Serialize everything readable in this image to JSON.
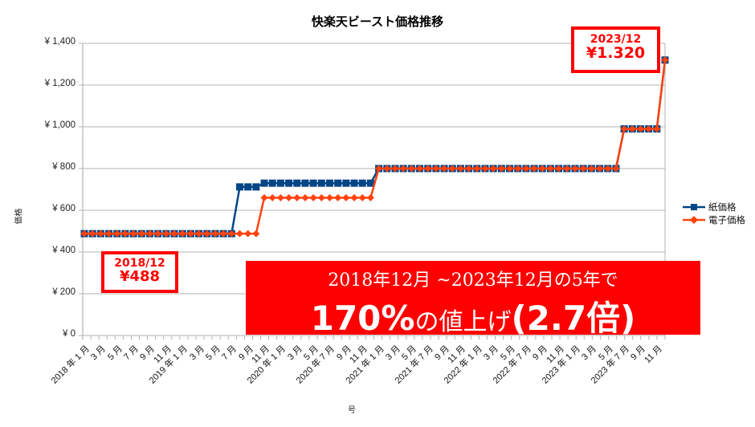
{
  "chart_data": {
    "type": "line",
    "title": "快楽天ビースト価格推移",
    "xlabel": "号",
    "ylabel": "価格",
    "ylim": [
      0,
      1400
    ],
    "yticks": [
      "¥ 0",
      "¥ 200",
      "¥ 400",
      "¥ 600",
      "¥ 800",
      "¥ 1,000",
      "¥ 1,200",
      "¥ 1,400"
    ],
    "ytick_values": [
      0,
      200,
      400,
      600,
      800,
      1000,
      1200,
      1400
    ],
    "grid": true,
    "legend_position": "right",
    "x": [
      "2018/1",
      "2018/2",
      "2018/3",
      "2018/4",
      "2018/5",
      "2018/6",
      "2018/7",
      "2018/8",
      "2018/9",
      "2018/10",
      "2018/11",
      "2018/12",
      "2019/1",
      "2019/2",
      "2019/3",
      "2019/4",
      "2019/5",
      "2019/6",
      "2019/7",
      "2019/8",
      "2019/9",
      "2019/10",
      "2019/11",
      "2019/12",
      "2020/1",
      "2020/2",
      "2020/3",
      "2020/4",
      "2020/5",
      "2020/6",
      "2020/7",
      "2020/8",
      "2020/9",
      "2020/10",
      "2020/11",
      "2020/12",
      "2021/1",
      "2021/2",
      "2021/3",
      "2021/4",
      "2021/5",
      "2021/6",
      "2021/7",
      "2021/8",
      "2021/9",
      "2021/10",
      "2021/11",
      "2021/12",
      "2022/1",
      "2022/2",
      "2022/3",
      "2022/4",
      "2022/5",
      "2022/6",
      "2022/7",
      "2022/8",
      "2022/9",
      "2022/10",
      "2022/11",
      "2022/12",
      "2023/1",
      "2023/2",
      "2023/3",
      "2023/4",
      "2023/5",
      "2023/6",
      "2023/7",
      "2023/8",
      "2023/9",
      "2023/10",
      "2023/11",
      "2023/12"
    ],
    "xtick_labels": [
      "2018 年 1 月",
      "3 月",
      "5 月",
      "7 月",
      "9 月",
      "11 月",
      "2019 年 1 月",
      "3 月",
      "5 月",
      "7 月",
      "9 月",
      "11 月",
      "2020 年 1 月",
      "3 月",
      "5 月",
      "2020 年 7 月",
      "9 月",
      "11 月",
      "2021 年 1 月",
      "3 月",
      "5 月",
      "2021 年 7 月",
      "9 月",
      "11 月",
      "2022 年 1 月",
      "3 月",
      "5 月",
      "2022 年 7 月",
      "9 月",
      "11 月",
      "2023 年 1 月",
      "3 月",
      "5 月",
      "2023 年 7 月",
      "9 月",
      "11 月"
    ],
    "series": [
      {
        "name": "紙価格",
        "color": "#004586",
        "marker": "square",
        "values": [
          488,
          488,
          488,
          488,
          488,
          488,
          488,
          488,
          488,
          488,
          488,
          488,
          488,
          488,
          488,
          488,
          488,
          488,
          488,
          712,
          712,
          712,
          730,
          730,
          730,
          730,
          730,
          730,
          730,
          730,
          730,
          730,
          730,
          730,
          730,
          730,
          800,
          800,
          800,
          800,
          800,
          800,
          800,
          800,
          800,
          800,
          800,
          800,
          800,
          800,
          800,
          800,
          800,
          800,
          800,
          800,
          800,
          800,
          800,
          800,
          800,
          800,
          800,
          800,
          800,
          800,
          990,
          990,
          990,
          990,
          990,
          1320
        ]
      },
      {
        "name": "電子価格",
        "color": "#ff420e",
        "marker": "diamond",
        "values": [
          488,
          488,
          488,
          488,
          488,
          488,
          488,
          488,
          488,
          488,
          488,
          488,
          488,
          488,
          488,
          488,
          488,
          488,
          488,
          488,
          488,
          488,
          660,
          660,
          660,
          660,
          660,
          660,
          660,
          660,
          660,
          660,
          660,
          660,
          660,
          660,
          800,
          800,
          800,
          800,
          800,
          800,
          800,
          800,
          800,
          800,
          800,
          800,
          800,
          800,
          800,
          800,
          800,
          800,
          800,
          800,
          800,
          800,
          800,
          800,
          800,
          800,
          800,
          800,
          800,
          800,
          990,
          990,
          990,
          990,
          990,
          1320
        ]
      }
    ],
    "annotations": [
      {
        "line1": "2018/12",
        "line2": "¥488"
      },
      {
        "line1": "2023/12",
        "line2": "¥1.320"
      },
      {
        "line1": "2018年12月 ~2023年12月の5年で",
        "line2_big": "170%",
        "line2_mid": "の値上げ",
        "line2_big2": "(2.7倍)"
      }
    ]
  },
  "colors": {
    "paper": "#004586",
    "digital": "#ff420e",
    "accent": "#ff0000",
    "grid": "#b3b3b3"
  }
}
